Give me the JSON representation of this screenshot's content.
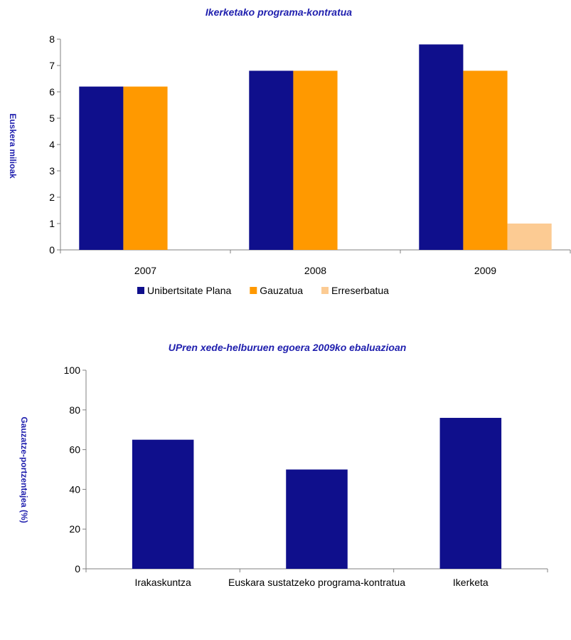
{
  "chart_data": [
    {
      "type": "bar",
      "title": "Ikerketako programa-kontratua",
      "ylabel": "Euskera milioak",
      "xlabel": "",
      "categories": [
        "2007",
        "2008",
        "2009"
      ],
      "ylim": [
        0,
        8
      ],
      "yticks": [
        0,
        1,
        2,
        3,
        4,
        5,
        6,
        7,
        8
      ],
      "series": [
        {
          "name": "Unibertsitate Plana",
          "color": "#0f0f8c",
          "values": [
            6.2,
            6.8,
            7.8
          ]
        },
        {
          "name": "Gauzatua",
          "color": "#ff9900",
          "values": [
            6.2,
            6.8,
            6.8
          ]
        },
        {
          "name": "Erreserbatua",
          "color": "#fccb93",
          "values": [
            0,
            0,
            1
          ]
        }
      ],
      "legend": "bottom"
    },
    {
      "type": "bar",
      "title": "UPren xede-helburuen egoera 2009ko ebaluazioan",
      "ylabel": "Gauzatze-portzentajea (%)",
      "xlabel": "",
      "categories": [
        "Irakaskuntza",
        "Euskara sustatzeko programa-kontratua",
        "Ikerketa"
      ],
      "ylim": [
        0,
        100
      ],
      "yticks": [
        0,
        20,
        40,
        60,
        80,
        100
      ],
      "series": [
        {
          "color": "#0f0f8c",
          "values": [
            65,
            50,
            76
          ]
        }
      ],
      "legend": "none"
    }
  ]
}
